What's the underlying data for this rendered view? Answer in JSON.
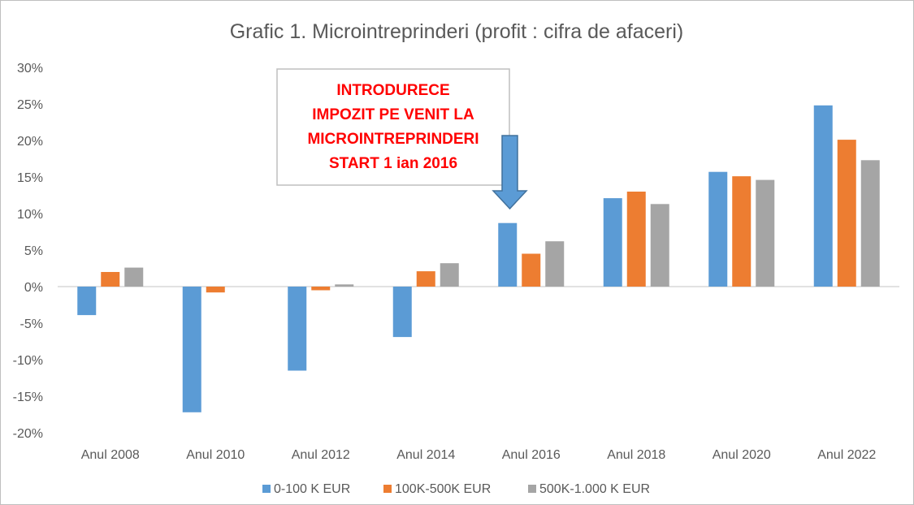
{
  "chart_data": {
    "type": "bar",
    "title": "Grafic 1. Microintreprinderi (profit : cifra de afaceri)",
    "xlabel": "",
    "ylabel": "",
    "categories": [
      "Anul 2008",
      "Anul 2010",
      "Anul 2012",
      "Anul 2014",
      "Anul 2016",
      "Anul 2018",
      "Anul 2020",
      "Anul 2022"
    ],
    "series": [
      {
        "name": "0-100 K EUR",
        "color": "#5b9bd5",
        "values": [
          -3.9,
          -17.2,
          -11.5,
          -6.9,
          8.7,
          12.1,
          15.7,
          24.8
        ]
      },
      {
        "name": "100K-500K EUR",
        "color": "#ed7d31",
        "values": [
          2.0,
          -0.8,
          -0.5,
          2.1,
          4.5,
          13.0,
          15.1,
          20.1
        ]
      },
      {
        "name": "500K-1.000 K EUR",
        "color": "#a5a5a5",
        "values": [
          2.6,
          0.0,
          0.3,
          3.2,
          6.2,
          11.3,
          14.6,
          17.3
        ]
      }
    ],
    "ylim": [
      -20,
      30
    ],
    "yticks": [
      -20,
      -15,
      -10,
      -5,
      0,
      5,
      10,
      15,
      20,
      25,
      30
    ],
    "ytick_labels": [
      "-20%",
      "-15%",
      "-10%",
      "-5%",
      "0%",
      "5%",
      "10%",
      "15%",
      "20%",
      "25%",
      "30%"
    ],
    "grid": false,
    "legend_position": "bottom",
    "annotation": {
      "lines": [
        "INTRODURECE",
        "IMPOZIT PE VENIT LA",
        "MICROINTREPRINDERI",
        "START 1 ian 2016"
      ],
      "text_color": "#ff0000",
      "arrow_color": "#5b9bd5",
      "points_to": "Anul 2016"
    }
  }
}
